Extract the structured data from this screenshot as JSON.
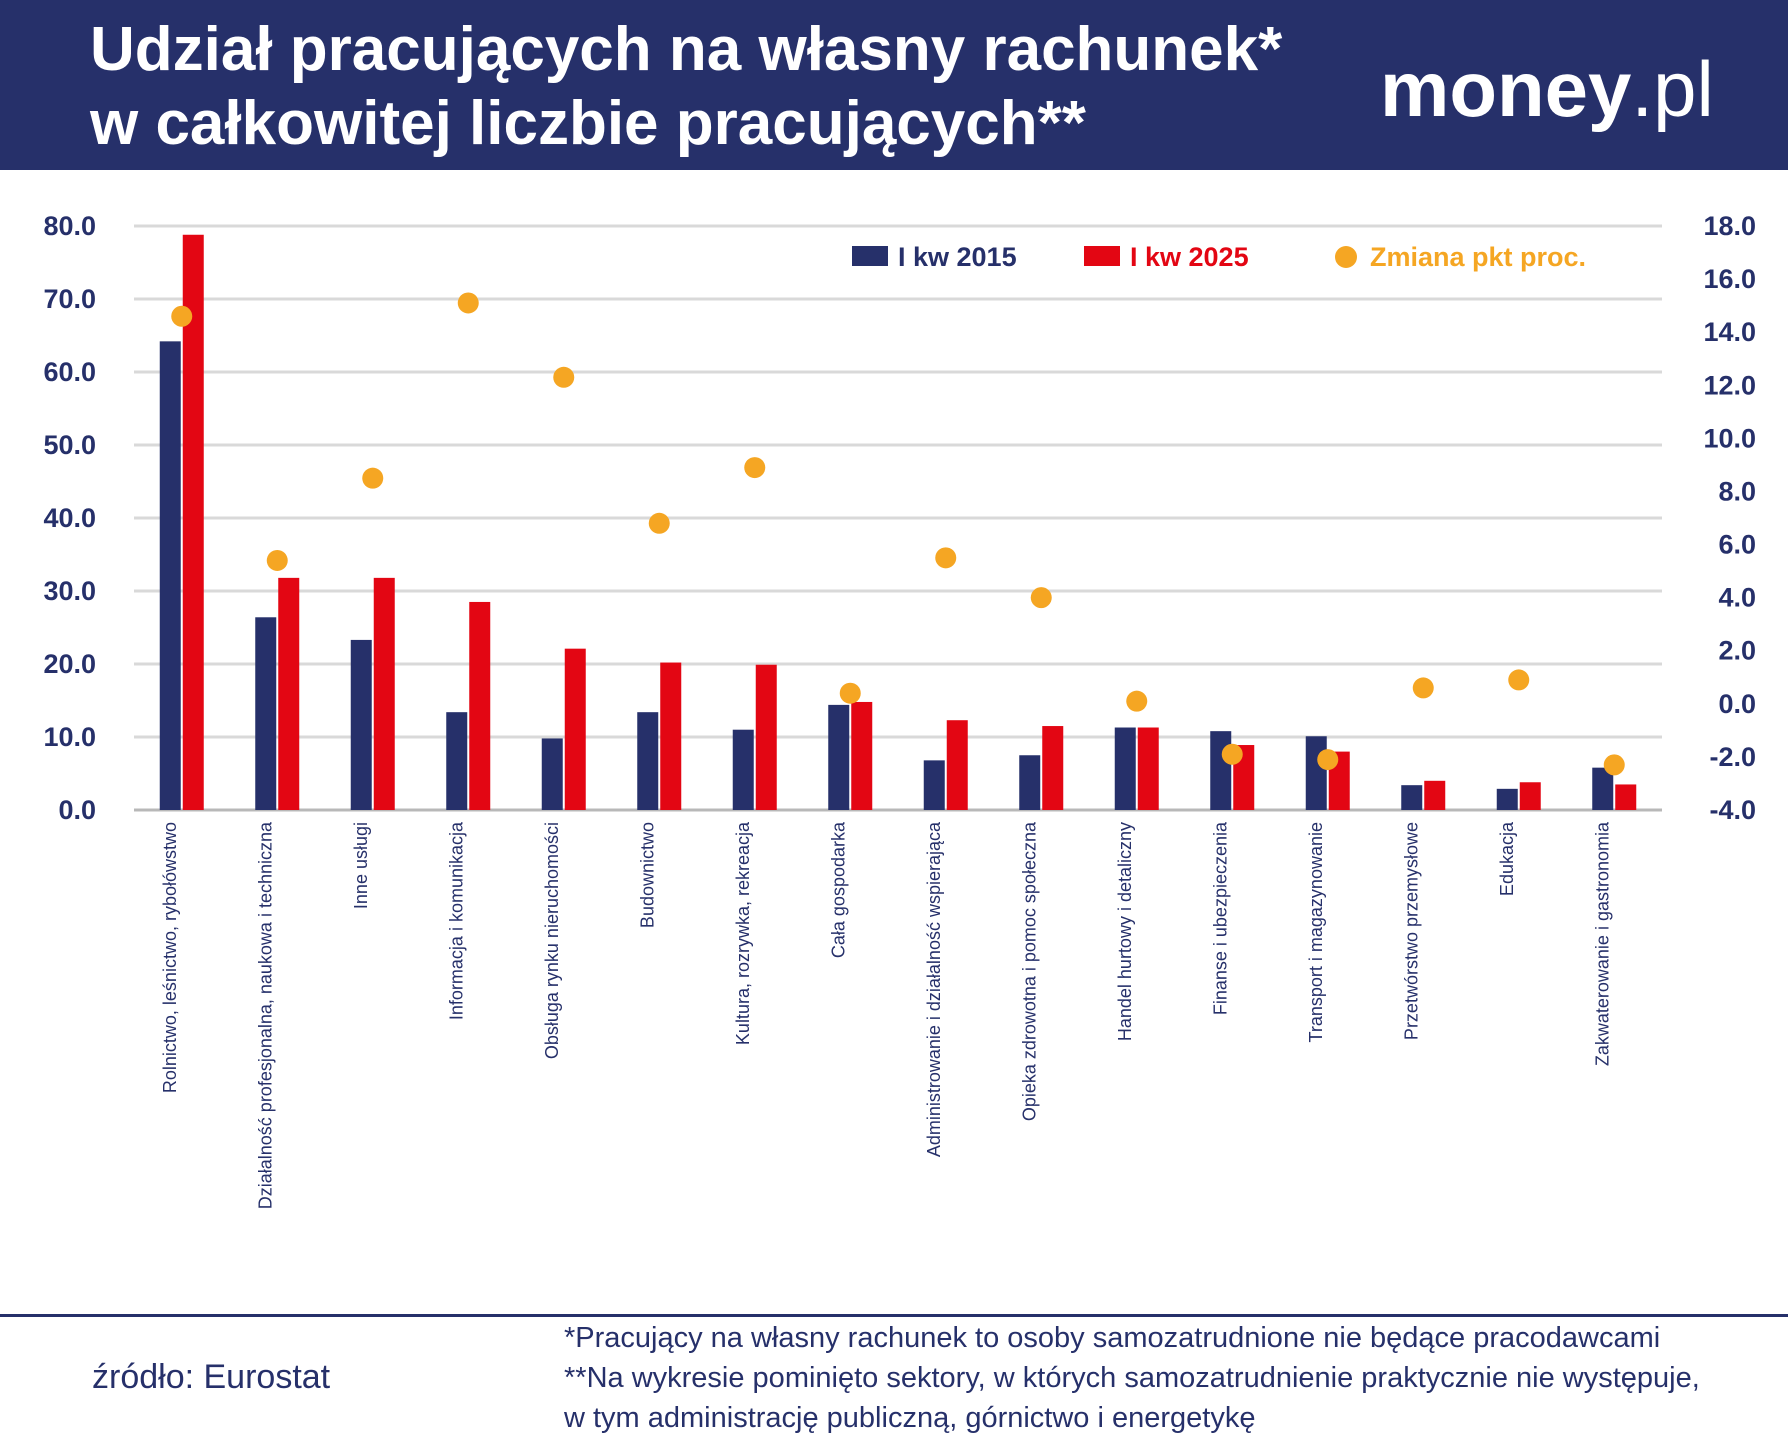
{
  "header": {
    "title_line1": "Udział pracujących na własny rachunek*",
    "title_line2": "w całkowitej liczbie pracujących**",
    "logo_main": "money",
    "logo_suffix": ".pl"
  },
  "colors": {
    "header_bg": "#26306a",
    "series_2015": "#26306a",
    "series_2025": "#e30613",
    "change_dot": "#f5a623",
    "grid": "#d9d9d9"
  },
  "chart_data": {
    "type": "bar",
    "categories": [
      "Rolnictwo, leśnictwo, rybołówstwo",
      "Działalność profesjonalna, naukowa i techniczna",
      "Inne usługi",
      "Informacja i komunikacja",
      "Obsługa rynku nieruchomości",
      "Budownictwo",
      "Kultura, rozrywka, rekreacja",
      "Cała gospodarka",
      "Administrowanie i działalność wspierająca",
      "Opieka zdrowotna i pomoc społeczna",
      "Handel hurtowy i detaliczny",
      "Finanse i ubezpieczenia",
      "Transport i magazynowanie",
      "Przetwórstwo przemysłowe",
      "Edukacja",
      "Zakwaterowanie i gastronomia"
    ],
    "series": [
      {
        "name": "I kw 2015",
        "axis": "left",
        "values": [
          64.2,
          26.4,
          23.3,
          13.4,
          9.8,
          13.4,
          11.0,
          14.4,
          6.8,
          7.5,
          11.3,
          10.8,
          10.1,
          3.4,
          2.9,
          5.8
        ]
      },
      {
        "name": "I kw 2025",
        "axis": "left",
        "values": [
          78.8,
          31.8,
          31.8,
          28.5,
          22.1,
          20.2,
          19.9,
          14.8,
          12.3,
          11.5,
          11.3,
          8.9,
          8.0,
          4.0,
          3.8,
          3.5
        ]
      },
      {
        "name": "Zmiana pkt proc.",
        "axis": "right",
        "type": "scatter",
        "values": [
          14.6,
          5.4,
          8.5,
          15.1,
          12.3,
          6.8,
          8.9,
          0.4,
          5.5,
          4.0,
          0.1,
          -1.9,
          -2.1,
          0.6,
          0.9,
          -2.3
        ]
      }
    ],
    "y_left": {
      "min": 0,
      "max": 80,
      "ticks": [
        "0.0",
        "10.0",
        "20.0",
        "30.0",
        "40.0",
        "50.0",
        "60.0",
        "70.0",
        "80.0"
      ]
    },
    "y_right": {
      "min": -4,
      "max": 18,
      "ticks": [
        "-4.0",
        "-2.0",
        "0.0",
        "2.0",
        "4.0",
        "6.0",
        "8.0",
        "10.0",
        "12.0",
        "14.0",
        "16.0",
        "18.0"
      ]
    },
    "grid": true,
    "legend_position": "top-right"
  },
  "footer": {
    "source": "źródło: Eurostat",
    "note1": "*Pracujący na własny rachunek to osoby samozatrudnione nie będące pracodawcami",
    "note2": "**Na wykresie pominięto sektory, w których samozatrudnienie praktycznie nie występuje,",
    "note3": "w tym administrację publiczną, górnictwo i energetykę"
  }
}
